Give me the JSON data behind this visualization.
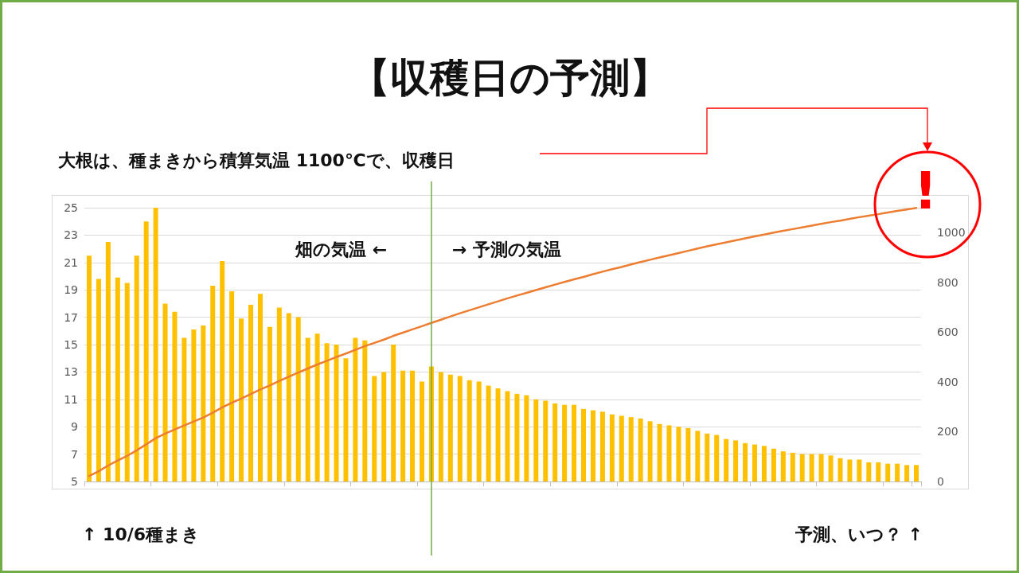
{
  "chart_data": {
    "type": "bar",
    "title": "【収穫日の予測】",
    "subtitle": "大根は、種まきから積算気温 1100℃で、収穫日",
    "categories": [
      null,
      null,
      null,
      null,
      null,
      null,
      null,
      null,
      null,
      null,
      null,
      null,
      null,
      null,
      null,
      null,
      null,
      null,
      null,
      null,
      null,
      null,
      null,
      null,
      null,
      null,
      null,
      null,
      null,
      null,
      null,
      null,
      null,
      null,
      null,
      null,
      null,
      null,
      null,
      null,
      null,
      null,
      null,
      null,
      null,
      null,
      null,
      null,
      null,
      null,
      null,
      null,
      null,
      null,
      null,
      null,
      null,
      null,
      null,
      null,
      null,
      null,
      null,
      null,
      null,
      null,
      null,
      null,
      null,
      null,
      null,
      null,
      null,
      null,
      null,
      null,
      null,
      null,
      null,
      null,
      null,
      null,
      null,
      null,
      null,
      null,
      null,
      null
    ],
    "series": [
      {
        "color": "#ffc000",
        "values": [
          21.5,
          19.8,
          22.5,
          19.9,
          19.5,
          21.5,
          24,
          25,
          18,
          17.4,
          15.5,
          16.1,
          16.4,
          19.3,
          21.1,
          18.9,
          16.9,
          17.9,
          18.7,
          16.3,
          17.7,
          17.3,
          17.0,
          15.5,
          15.8,
          15.1,
          15.0,
          14.0,
          15.5,
          15.3,
          12.7,
          13.0,
          15.0,
          13.1,
          13.1,
          12.3,
          13.4,
          13.0,
          12.8,
          12.7,
          12.4,
          12.3,
          12.0,
          11.8,
          11.6,
          11.4,
          11.3,
          11.0,
          10.9,
          10.7,
          10.6,
          10.6,
          10.3,
          10.2,
          10.1,
          9.9,
          9.8,
          9.7,
          9.6,
          9.4,
          9.2,
          9.1,
          9.0,
          8.9,
          8.7,
          8.5,
          8.4,
          8.1,
          8.0,
          7.8,
          7.7,
          7.6,
          7.4,
          7.2,
          7.1,
          7.0,
          7.0,
          7.0,
          6.9,
          6.7,
          6.6,
          6.6,
          6.4,
          6.4,
          6.3,
          6.3,
          6.2,
          6.2
        ]
      },
      {
        "type": "line",
        "axis": "y2",
        "color": "#ed7d31",
        "values": [
          22,
          41,
          64,
          84,
          103,
          125,
          149,
          174,
          192,
          209,
          225,
          241,
          257,
          276,
          298,
          316,
          333,
          351,
          370,
          386,
          404,
          421,
          438,
          454,
          470,
          485,
          500,
          514,
          529,
          544,
          557,
          570,
          585,
          598,
          611,
          624,
          637,
          650,
          663,
          676,
          688,
          700,
          712,
          724,
          736,
          747,
          758,
          769,
          780,
          791,
          802,
          812,
          822,
          833,
          843,
          853,
          862,
          872,
          882,
          891,
          900,
          909,
          918,
          927,
          936,
          945,
          953,
          961,
          969,
          977,
          985,
          992,
          1000,
          1007,
          1014,
          1021,
          1028,
          1035,
          1042,
          1048,
          1055,
          1062,
          1068,
          1074,
          1081,
          1087,
          1093,
          1099
        ]
      }
    ],
    "ylim": [
      5,
      25
    ],
    "yticks": [
      5,
      7,
      9,
      11,
      13,
      15,
      17,
      19,
      21,
      23,
      25
    ],
    "y2lim": [
      0,
      1100
    ],
    "y2ticks": [
      0,
      200,
      400,
      600,
      800,
      1000
    ],
    "annotations": [
      "畑の気温 ←",
      "→ 予測の気温",
      "↑ 10/6種まき",
      "予測、いつ？ ↑",
      "!"
    ],
    "grid": "y",
    "marker": "none",
    "tick_labels": "y"
  }
}
